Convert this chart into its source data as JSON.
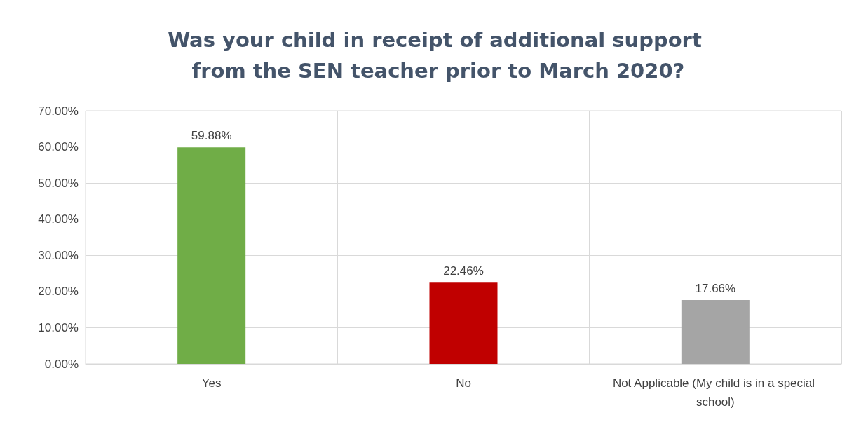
{
  "chart_data": {
    "type": "bar",
    "title": "Was your child in receipt of additional support from the SEN teacher prior to March 2020?",
    "categories": [
      "Yes",
      "No",
      "Not Applicable (My child is in a special school)"
    ],
    "values": [
      59.88,
      22.46,
      17.66
    ],
    "colors": [
      "#70ad47",
      "#c00000",
      "#a5a5a5"
    ],
    "value_labels": [
      "59.88%",
      "22.46%",
      "17.66%"
    ],
    "ylim": [
      0,
      70
    ],
    "yticks": [
      {
        "value": 0,
        "label": "0.00%"
      },
      {
        "value": 10,
        "label": "10.00%"
      },
      {
        "value": 20,
        "label": "20.00%"
      },
      {
        "value": 30,
        "label": "30.00%"
      },
      {
        "value": 40,
        "label": "40.00%"
      },
      {
        "value": 50,
        "label": "50.00%"
      },
      {
        "value": 60,
        "label": "60.00%"
      },
      {
        "value": 70,
        "label": "70.00%"
      }
    ],
    "grid": true
  }
}
